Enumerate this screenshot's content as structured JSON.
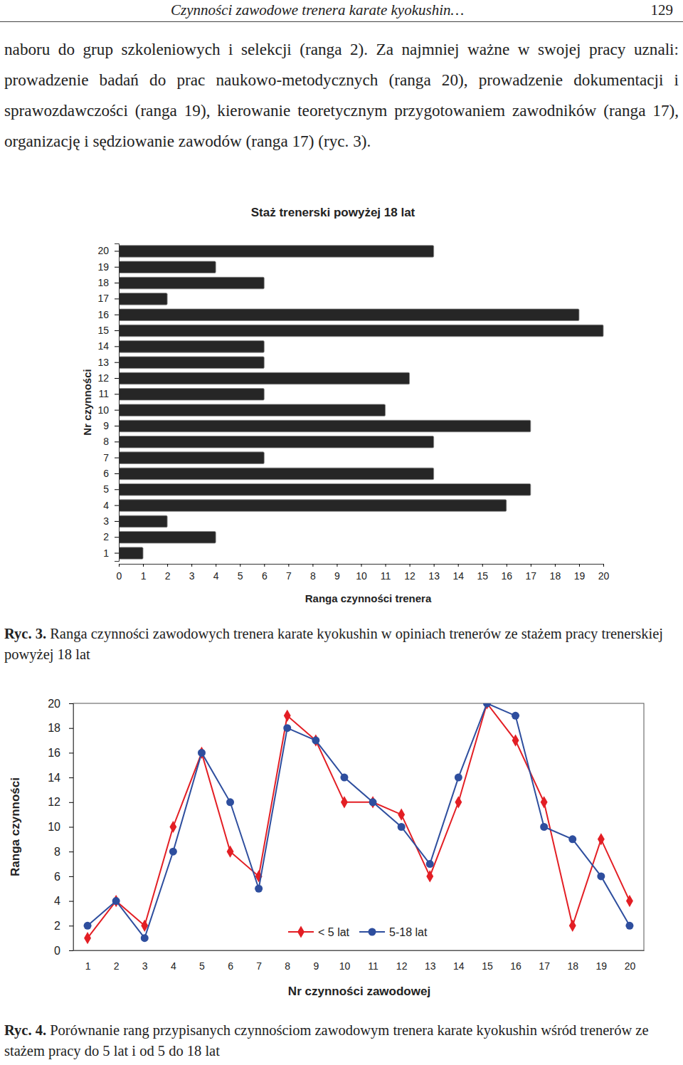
{
  "header": {
    "running_title": "Czynności zawodowe trenera karate kyokushin…",
    "page_number": "129"
  },
  "paragraph": "naboru do grup szkoleniowych i selekcji (ranga 2). Za najmniej ważne w swojej pracy uznali: prowadzenie badań do prac naukowo-metodycznych (ranga 20), prowadzenie dokumentacji i sprawozdawczości (ranga 19), kierowanie teoretycznym przygotowaniem zawodników (ranga 17), organizację i sędziowanie zawodów (ranga 17) (ryc. 3).",
  "chart_data": [
    {
      "type": "bar",
      "orientation": "horizontal",
      "title": "Staż trenerski powyżej 18 lat",
      "xlabel": "Ranga czynności trenera",
      "ylabel": "Nr czynności",
      "categories": [
        "1",
        "2",
        "3",
        "4",
        "5",
        "6",
        "7",
        "8",
        "9",
        "10",
        "11",
        "12",
        "13",
        "14",
        "15",
        "16",
        "17",
        "18",
        "19",
        "20"
      ],
      "values": [
        1,
        4,
        2,
        16,
        17,
        13,
        6,
        13,
        17,
        11,
        6,
        12,
        6,
        6,
        20,
        19,
        2,
        6,
        4,
        13
      ],
      "color": "#262626",
      "xlim": [
        0,
        20
      ],
      "xticks": [
        0,
        1,
        2,
        3,
        4,
        5,
        6,
        7,
        8,
        9,
        10,
        11,
        12,
        13,
        14,
        15,
        16,
        17,
        18,
        19,
        20
      ],
      "grid": false
    },
    {
      "type": "line",
      "xlabel": "Nr czynności zawodowej",
      "ylabel": "Ranga czynności",
      "x": [
        1,
        2,
        3,
        4,
        5,
        6,
        7,
        8,
        9,
        10,
        11,
        12,
        13,
        14,
        15,
        16,
        17,
        18,
        19,
        20
      ],
      "xlim": [
        0.5,
        20.5
      ],
      "xticks": [
        1,
        2,
        3,
        4,
        5,
        6,
        7,
        8,
        9,
        10,
        11,
        12,
        13,
        14,
        15,
        16,
        17,
        18,
        19,
        20
      ],
      "ylim": [
        0,
        20
      ],
      "yticks": [
        0,
        2,
        4,
        6,
        8,
        10,
        12,
        14,
        16,
        18,
        20
      ],
      "grid": false,
      "legend": "bottom",
      "series": [
        {
          "name": "< 5 lat",
          "color": "#e31e24",
          "marker": "diamond",
          "line_style": "solid",
          "values": [
            1,
            4,
            2,
            10,
            16,
            8,
            6,
            19,
            17,
            12,
            12,
            11,
            6,
            12,
            20,
            17,
            12,
            2,
            9,
            4
          ]
        },
        {
          "name": "5-18 lat",
          "color": "#2e4e9e",
          "marker": "circle",
          "line_style": "solid",
          "values": [
            2,
            4,
            1,
            8,
            16,
            12,
            5,
            18,
            17,
            14,
            12,
            10,
            7,
            14,
            20,
            19,
            10,
            9,
            6,
            2
          ]
        }
      ]
    }
  ],
  "captions": [
    {
      "label": "Ryc. 3.",
      "text": "Ranga czynności zawodowych trenera karate kyokushin w opiniach trenerów ze stażem pracy trenerskiej powyżej 18 lat"
    },
    {
      "label": "Ryc. 4.",
      "text": "Porównanie rang przypisanych czynnościom zawodowym trenera karate kyokushin wśród trenerów ze stażem pracy do 5 lat i od 5 do 18 lat"
    }
  ]
}
